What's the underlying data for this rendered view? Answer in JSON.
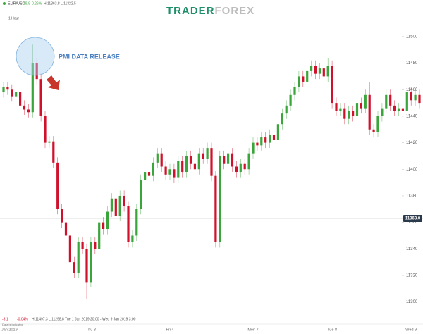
{
  "header": {
    "symbol": "EUR/USD",
    "change": "29.9",
    "change_pct": "0.26%",
    "hl": "H 11363.8 L 11322.5",
    "interval": "1 Hour",
    "logo_a": "TRADER",
    "logo_b": "FOREX"
  },
  "footer": {
    "change": "-3.1",
    "change_pct": "-0.04%",
    "range": "H 11497.3 L 11298.8 Tue 1 Jan 2019 20:00 - Wed 9 Jan 2019 3:00",
    "note": "Data is indicative"
  },
  "chart_data": {
    "type": "candlestick",
    "annotation": "PMI DATA RELEASE",
    "up_color": "#3aa53a",
    "down_color": "#d0112b",
    "categories": [
      "Jan 2019",
      null,
      null,
      null,
      null,
      null,
      null,
      null,
      null,
      null,
      null,
      null,
      null,
      null,
      null,
      null,
      null,
      null,
      null,
      null,
      null,
      "Thu 3",
      null,
      null,
      null,
      null,
      null,
      null,
      null,
      null,
      null,
      null,
      null,
      null,
      null,
      null,
      null,
      null,
      null,
      null,
      "Fri 4",
      null,
      null,
      null,
      null,
      null,
      null,
      null,
      null,
      null,
      null,
      null,
      null,
      null,
      null,
      null,
      null,
      null,
      null,
      null,
      "Mon 7",
      null,
      null,
      null,
      null,
      null,
      null,
      null,
      null,
      null,
      null,
      null,
      null,
      null,
      null,
      null,
      null,
      null,
      null,
      "Tue 8",
      null,
      null,
      null,
      null,
      null,
      null,
      null,
      null,
      null,
      null,
      null,
      null,
      null,
      null,
      null,
      null,
      null,
      null,
      "Wed 9",
      null,
      null
    ],
    "open": [
      11458,
      11462,
      11460,
      11455,
      11458,
      11448,
      11445,
      11443,
      11480,
      11468,
      11440,
      11420,
      11421,
      11405,
      11370,
      11360,
      11350,
      11330,
      11322,
      11345,
      11340,
      11315,
      11345,
      11340,
      11360,
      11355,
      11368,
      11378,
      11365,
      11380,
      11372,
      11345,
      11350,
      11370,
      11392,
      11398,
      11395,
      11405,
      11412,
      11402,
      11396,
      11400,
      11394,
      11406,
      11398,
      11410,
      11404,
      11400,
      11412,
      11408,
      11416,
      11395,
      11345,
      11410,
      11404,
      11412,
      11402,
      11398,
      11404,
      11400,
      11412,
      11420,
      11418,
      11424,
      11420,
      11426,
      11422,
      11434,
      11442,
      11448,
      11456,
      11462,
      11470,
      11466,
      11474,
      11478,
      11472,
      11476,
      11470,
      11478,
      11450,
      11444,
      11446,
      11438,
      11444,
      11440,
      11450,
      11446,
      11456,
      11430,
      11428,
      11440,
      11446,
      11456,
      11448,
      11444,
      11446,
      11444,
      11458,
      11452,
      11456
    ],
    "high": [
      11466,
      11466,
      11464,
      11462,
      11462,
      11452,
      11449,
      11494,
      11484,
      11472,
      11444,
      11425,
      11425,
      11409,
      11374,
      11364,
      11354,
      11334,
      11349,
      11349,
      11344,
      11349,
      11349,
      11364,
      11364,
      11372,
      11382,
      11382,
      11384,
      11384,
      11376,
      11354,
      11374,
      11396,
      11402,
      11402,
      11409,
      11416,
      11416,
      11406,
      11404,
      11404,
      11410,
      11410,
      11414,
      11414,
      11408,
      11416,
      11416,
      11420,
      11420,
      11399,
      11414,
      11414,
      11416,
      11416,
      11406,
      11408,
      11408,
      11416,
      11424,
      11424,
      11428,
      11428,
      11430,
      11430,
      11438,
      11446,
      11452,
      11460,
      11466,
      11474,
      11474,
      11478,
      11482,
      11482,
      11480,
      11480,
      11484,
      11482,
      11454,
      11450,
      11450,
      11448,
      11448,
      11454,
      11454,
      11460,
      11466,
      11434,
      11444,
      11450,
      11460,
      11460,
      11452,
      11450,
      11450,
      11462,
      11462,
      11460,
      11460
    ],
    "low": [
      11454,
      11456,
      11451,
      11451,
      11444,
      11441,
      11439,
      11439,
      11464,
      11436,
      11416,
      11416,
      11401,
      11366,
      11356,
      11346,
      11326,
      11318,
      11318,
      11336,
      11302,
      11311,
      11336,
      11336,
      11351,
      11351,
      11364,
      11361,
      11361,
      11368,
      11341,
      11341,
      11346,
      11366,
      11388,
      11391,
      11391,
      11401,
      11398,
      11392,
      11392,
      11390,
      11390,
      11394,
      11394,
      11400,
      11396,
      11396,
      11404,
      11404,
      11391,
      11341,
      11341,
      11400,
      11400,
      11398,
      11394,
      11394,
      11396,
      11396,
      11408,
      11414,
      11414,
      11416,
      11416,
      11418,
      11418,
      11430,
      11438,
      11444,
      11452,
      11458,
      11462,
      11462,
      11470,
      11468,
      11468,
      11466,
      11466,
      11446,
      11440,
      11440,
      11434,
      11434,
      11436,
      11436,
      11442,
      11442,
      11426,
      11424,
      11424,
      11436,
      11442,
      11444,
      11440,
      11440,
      11440,
      11440,
      11448,
      11448,
      11446
    ],
    "close": [
      11462,
      11460,
      11455,
      11458,
      11448,
      11445,
      11443,
      11480,
      11468,
      11440,
      11420,
      11421,
      11405,
      11370,
      11360,
      11350,
      11330,
      11322,
      11345,
      11340,
      11315,
      11345,
      11340,
      11360,
      11355,
      11368,
      11378,
      11365,
      11380,
      11372,
      11345,
      11350,
      11370,
      11392,
      11398,
      11395,
      11405,
      11412,
      11402,
      11396,
      11400,
      11394,
      11406,
      11398,
      11410,
      11404,
      11400,
      11412,
      11408,
      11416,
      11395,
      11345,
      11410,
      11404,
      11412,
      11402,
      11398,
      11404,
      11400,
      11412,
      11420,
      11418,
      11424,
      11420,
      11426,
      11422,
      11434,
      11442,
      11448,
      11456,
      11462,
      11470,
      11466,
      11474,
      11478,
      11472,
      11476,
      11470,
      11478,
      11450,
      11444,
      11446,
      11438,
      11444,
      11440,
      11450,
      11446,
      11456,
      11430,
      11428,
      11440,
      11446,
      11456,
      11448,
      11444,
      11446,
      11444,
      11458,
      11452,
      11456,
      11450
    ],
    "current_price": {
      "value": 11363.0,
      "label": "11363.0"
    },
    "ylim": [
      11286,
      11518
    ],
    "yticks": [
      11300,
      11320,
      11340,
      11360,
      11380,
      11400,
      11420,
      11440,
      11460,
      11480,
      11500
    ]
  }
}
